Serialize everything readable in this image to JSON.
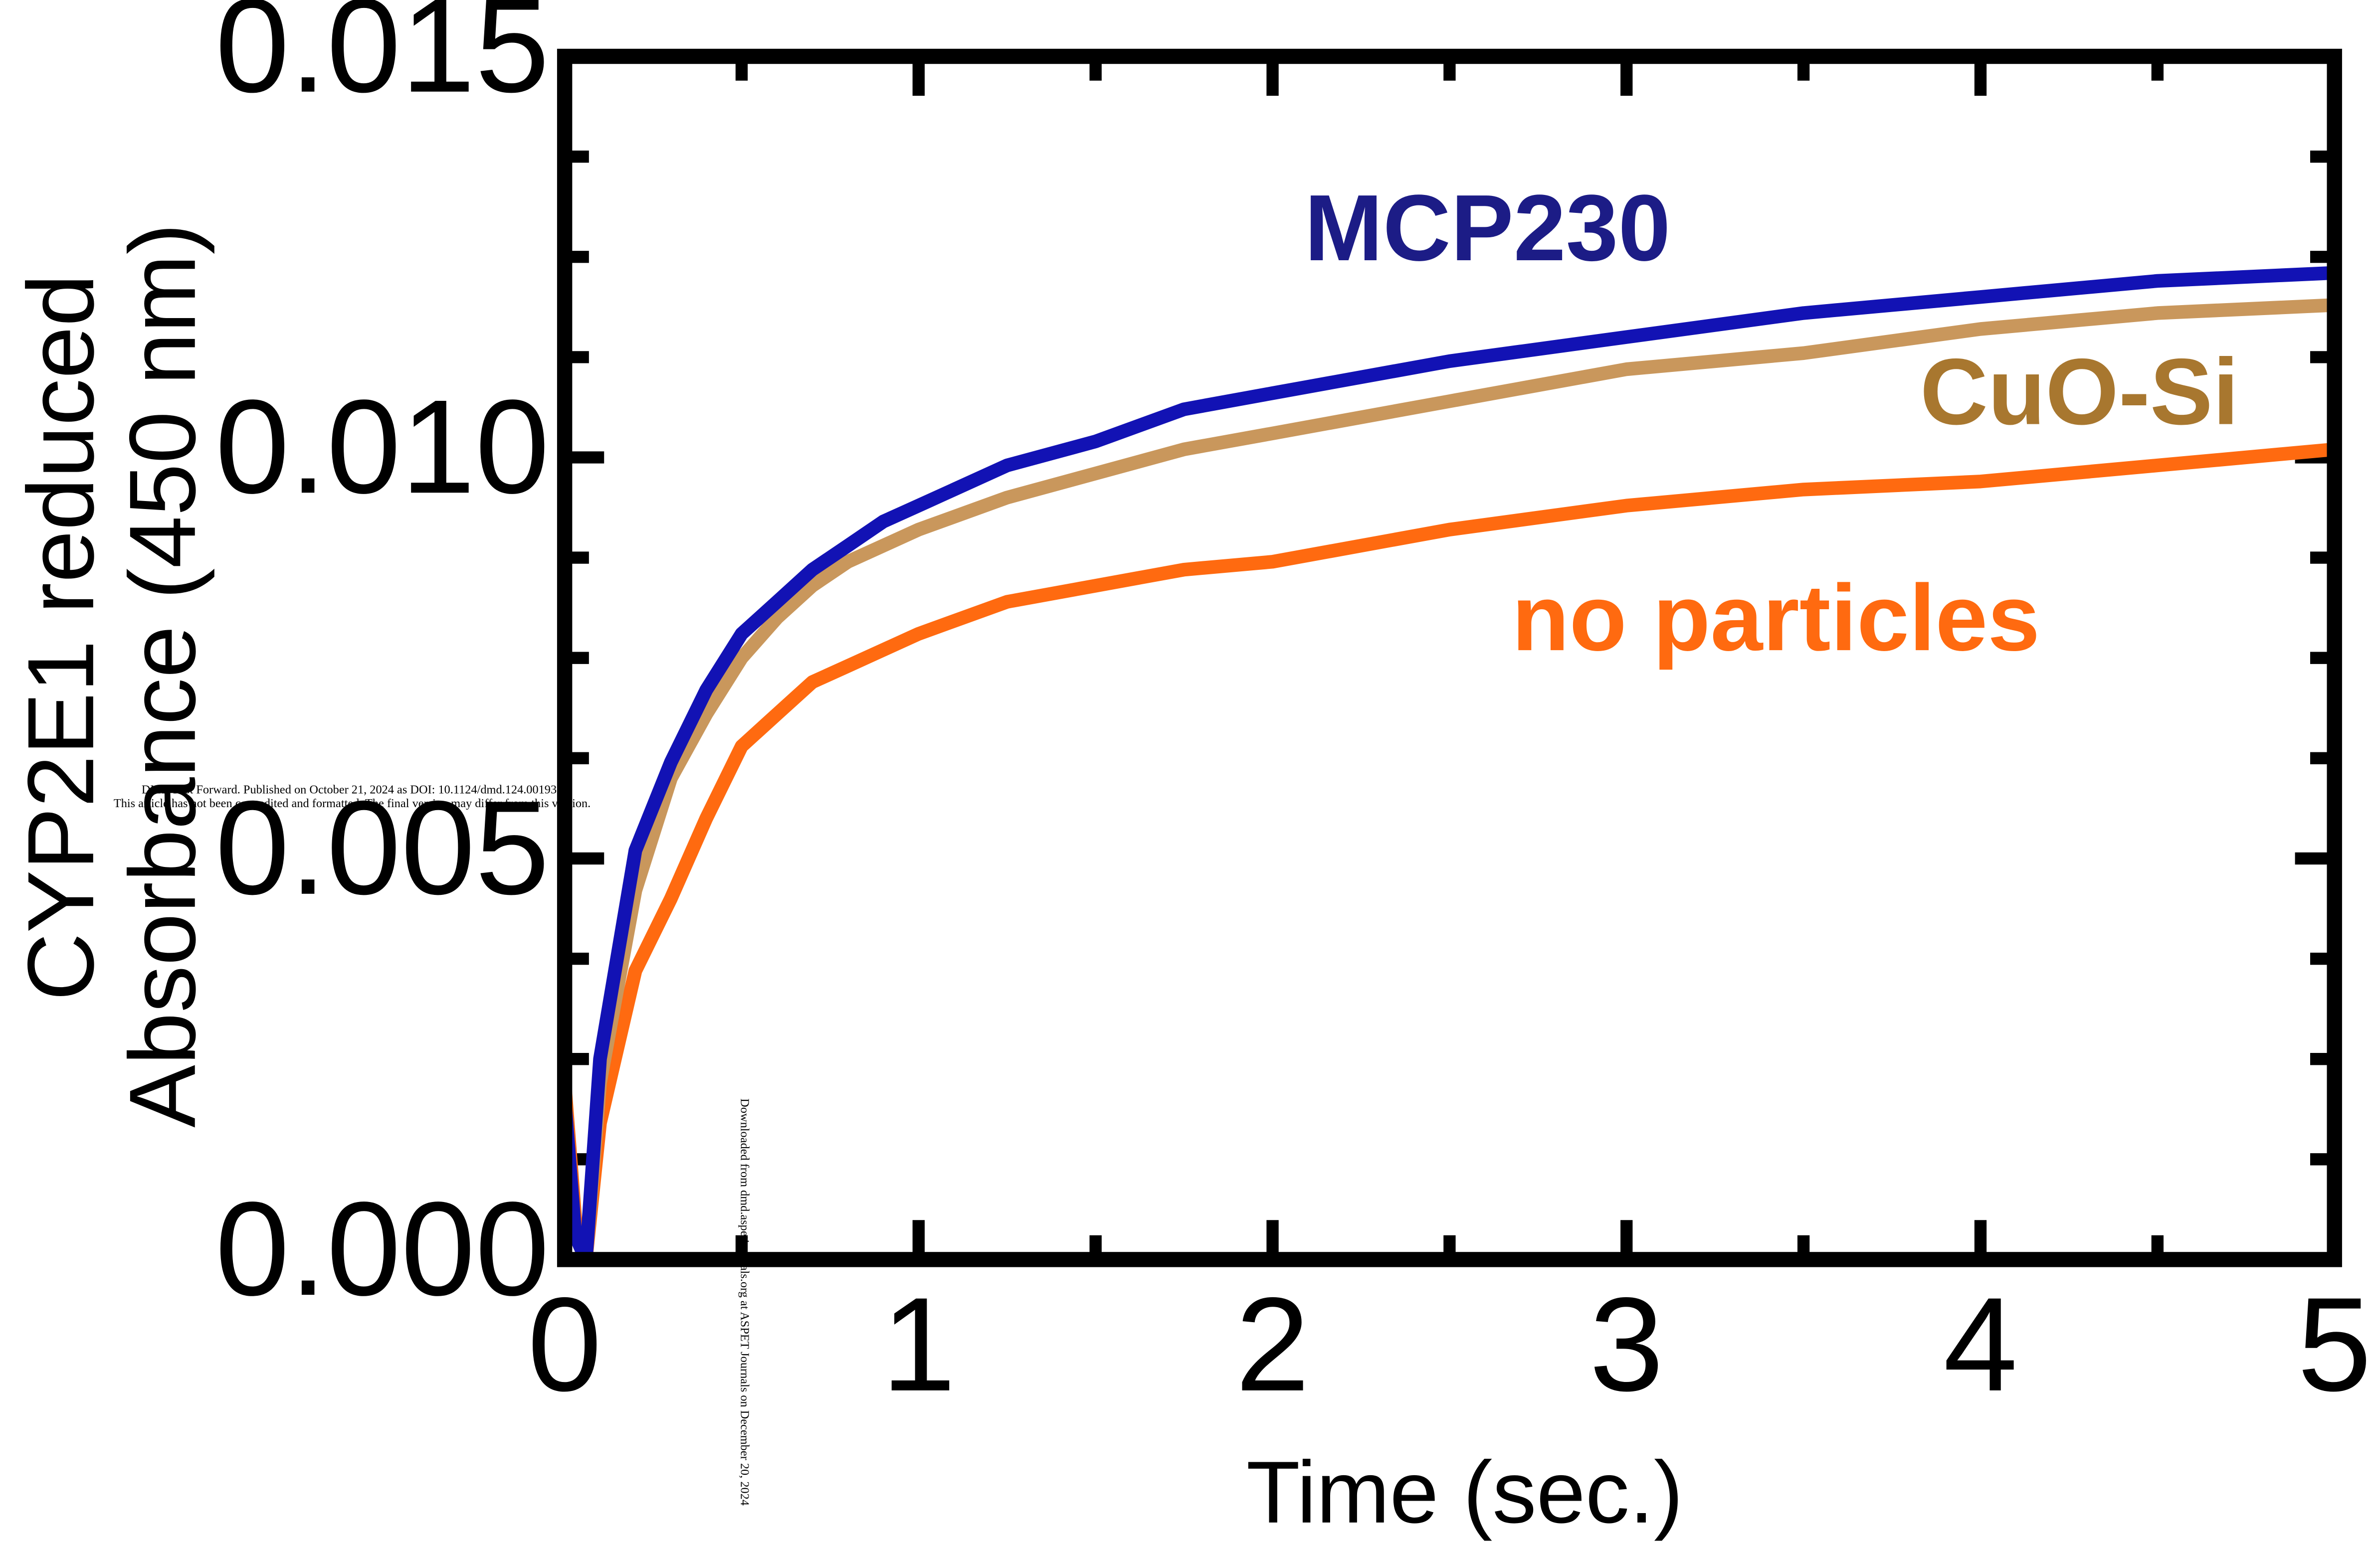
{
  "chart_data": {
    "type": "line",
    "x_label": "Time (sec.)",
    "y_label": [
      "CYP2E1 reduced",
      "Absorbance (450 nm)"
    ],
    "x": [
      0,
      0.03,
      0.06,
      0.1,
      0.2,
      0.3,
      0.4,
      0.5,
      0.6,
      0.7,
      0.8,
      0.9,
      1.0,
      1.25,
      1.5,
      1.75,
      2.0,
      2.5,
      3.0,
      3.5,
      4.0,
      4.5,
      5.0
    ],
    "series": [
      {
        "name": "MCP230",
        "color": "#1212b4",
        "label_color": "#1c1c86",
        "values": [
          0.002,
          0.0003,
          0.0,
          0.0025,
          0.0051,
          0.0062,
          0.0071,
          0.0078,
          0.0082,
          0.0086,
          0.0089,
          0.0092,
          0.0094,
          0.0099,
          0.0102,
          0.0106,
          0.0108,
          0.0112,
          0.0115,
          0.0118,
          0.012,
          0.0122,
          0.0123
        ]
      },
      {
        "name": "CuO-Si",
        "color": "#c9975c",
        "label_color": "#a8772f",
        "values": [
          0.002,
          0.0003,
          0.0,
          0.0022,
          0.0046,
          0.006,
          0.0068,
          0.0075,
          0.008,
          0.0084,
          0.0087,
          0.0089,
          0.0091,
          0.0095,
          0.0098,
          0.0101,
          0.0103,
          0.0107,
          0.0111,
          0.0113,
          0.0116,
          0.0118,
          0.0119
        ]
      },
      {
        "name": "no particles",
        "color": "#ff6a10",
        "label_color": "#ff6a10",
        "values": [
          0.0022,
          0.0005,
          0.0,
          0.0017,
          0.0036,
          0.0045,
          0.0055,
          0.0064,
          0.0068,
          0.0072,
          0.0074,
          0.0076,
          0.0078,
          0.0082,
          0.0084,
          0.0086,
          0.0087,
          0.0091,
          0.0094,
          0.0096,
          0.0097,
          0.0099,
          0.0101
        ]
      }
    ],
    "xlim": [
      0,
      5
    ],
    "ylim": [
      0,
      0.015
    ],
    "xticks": [
      0,
      1,
      2,
      3,
      4,
      5
    ],
    "x_minor_ticks": [
      0.5,
      1.5,
      2.5,
      3.5,
      4.5
    ],
    "yticks": [
      {
        "value": 0,
        "label": "0.000"
      },
      {
        "value": 0.005,
        "label": "0.005"
      },
      {
        "value": 0.01,
        "label": "0.010"
      },
      {
        "value": 0.015,
        "label": "0.015"
      }
    ],
    "y_minor_ticks": [
      0.00125,
      0.0025,
      0.00375,
      0.00625,
      0.0075,
      0.00875,
      0.01125,
      0.0125,
      0.01375
    ],
    "watermark": [
      "DMD Fast Forward. Published on October 21, 2024 as DOI: 10.1124/dmd.124.001933",
      "This article has not been copyedited and formatted. The final version may differ from this version.",
      "Downloaded from dmd.aspetjournals.org at ASPET Journals on December 20, 2024"
    ]
  }
}
